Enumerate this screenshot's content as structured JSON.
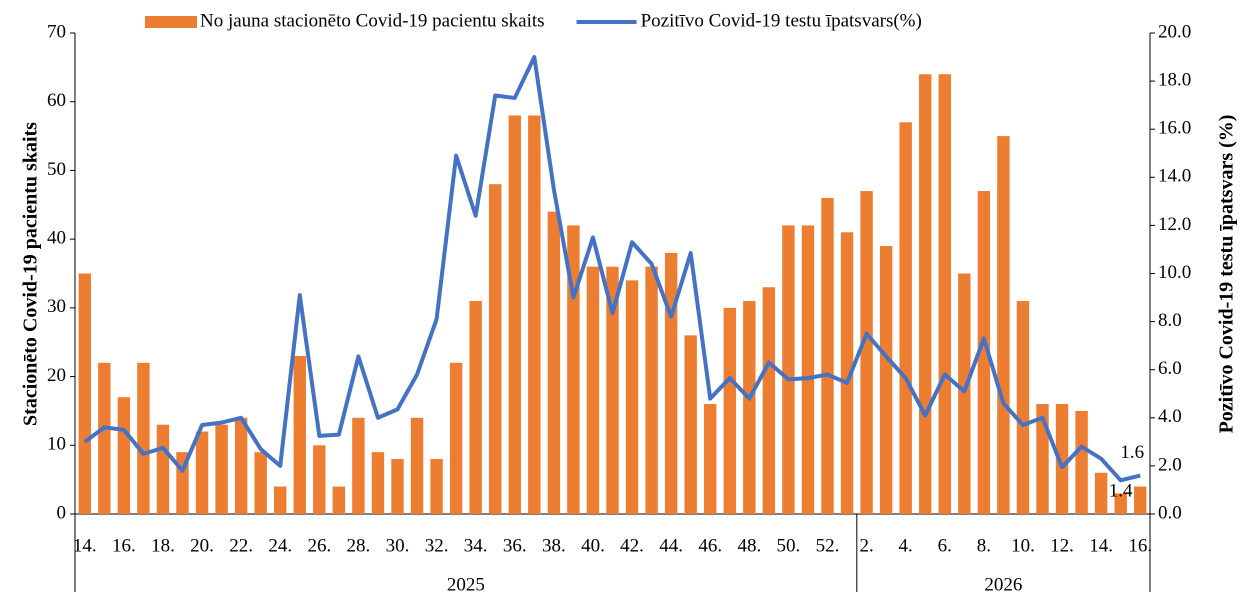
{
  "chart_data": {
    "type": "bar_line",
    "categories": [
      "14.",
      null,
      "16.",
      null,
      "18.",
      null,
      "20.",
      null,
      "22.",
      null,
      "24.",
      null,
      "26.",
      null,
      "28.",
      null,
      "30.",
      null,
      "32.",
      null,
      "34.",
      null,
      "36.",
      null,
      "38.",
      null,
      "40.",
      null,
      "42.",
      null,
      "44.",
      null,
      "46.",
      null,
      "48.",
      null,
      "50.",
      null,
      "52.",
      null,
      "2.",
      null,
      "4.",
      null,
      "6.",
      null,
      "8.",
      null,
      "10.",
      null,
      "12.",
      null,
      "14.",
      null,
      "16."
    ],
    "groups": [
      {
        "label": "2025",
        "size": 40
      },
      {
        "label": "2026",
        "size": 15
      }
    ],
    "y_label": "Stacionēto Covid-19 pacientu skaits",
    "y2_label": "Pozitīvo Covid-19 testu īpatsvars (%)",
    "ylim": [
      0,
      70
    ],
    "yticks": [
      0,
      10,
      20,
      30,
      40,
      50,
      60,
      70
    ],
    "y2lim": [
      0,
      20
    ],
    "y2ticks": [
      {
        "value": 0,
        "label": "0.0"
      },
      {
        "value": 2,
        "label": "2.0"
      },
      {
        "value": 4,
        "label": "4.0"
      },
      {
        "value": 6,
        "label": "6.0"
      },
      {
        "value": 8,
        "label": "8.0"
      },
      {
        "value": 10,
        "label": "10.0"
      },
      {
        "value": 12,
        "label": "12.0"
      },
      {
        "value": 14,
        "label": "14.0"
      },
      {
        "value": 16,
        "label": "16.0"
      },
      {
        "value": 18,
        "label": "18.0"
      },
      {
        "value": 20,
        "label": "20.0"
      }
    ],
    "series": [
      {
        "name": "No jauna stacionēto Covid-19 pacientu skaits",
        "type": "bar",
        "color": "#ED7D31",
        "values": [
          35,
          22,
          17,
          22,
          13,
          9,
          12,
          13,
          14,
          9,
          4,
          23,
          10,
          4,
          14,
          9,
          8,
          14,
          8,
          22,
          31,
          48,
          58,
          58,
          44,
          42,
          36,
          36,
          34,
          36,
          38,
          26,
          16,
          30,
          31,
          33,
          42,
          42,
          46,
          41,
          47,
          39,
          57,
          64,
          64,
          35,
          47,
          55,
          31,
          16,
          16,
          15,
          6,
          3,
          4
        ]
      },
      {
        "name": "Pozitīvo Covid-19 testu īpatsvars(%)",
        "type": "line",
        "axis": "y2",
        "color": "#4472C4",
        "values": [
          3.0,
          3.6,
          3.5,
          2.5,
          2.75,
          1.8,
          3.7,
          3.8,
          4.0,
          2.7,
          2.0,
          9.1,
          3.25,
          3.3,
          6.55,
          4.0,
          4.35,
          5.8,
          8.1,
          14.9,
          12.4,
          17.4,
          17.3,
          19.0,
          13.5,
          9.0,
          11.5,
          8.35,
          11.3,
          10.4,
          8.2,
          10.85,
          4.8,
          5.65,
          4.8,
          6.3,
          5.6,
          5.65,
          5.8,
          5.45,
          7.5,
          6.55,
          5.65,
          4.1,
          5.8,
          5.1,
          7.3,
          4.6,
          3.7,
          4.0,
          1.95,
          2.8,
          2.3,
          1.4,
          1.6
        ],
        "value_labels": [
          null,
          null,
          null,
          null,
          null,
          null,
          null,
          null,
          null,
          null,
          null,
          null,
          null,
          null,
          null,
          null,
          null,
          null,
          null,
          null,
          null,
          null,
          null,
          null,
          null,
          null,
          null,
          null,
          null,
          null,
          null,
          null,
          null,
          null,
          null,
          null,
          null,
          null,
          null,
          null,
          null,
          null,
          null,
          null,
          null,
          null,
          null,
          null,
          null,
          null,
          null,
          null,
          null,
          "1.4",
          "1.6"
        ]
      }
    ]
  }
}
